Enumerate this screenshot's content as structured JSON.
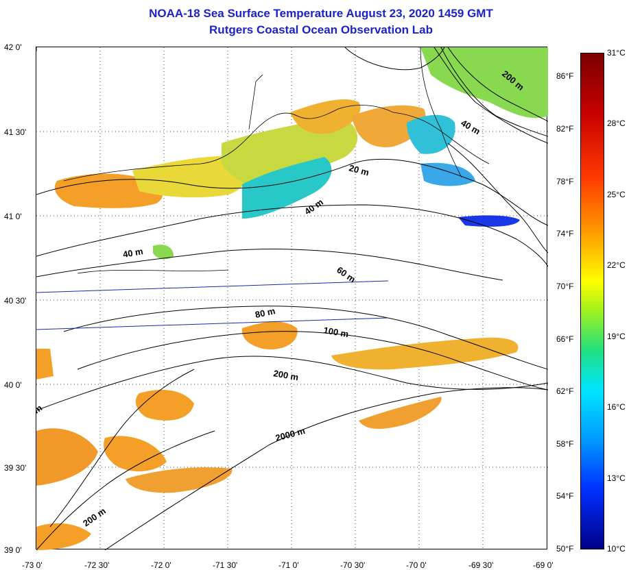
{
  "title": {
    "line1": "NOAA-18 Sea Surface Temperature August 23, 2020 1459 GMT",
    "line2": "Rutgers Coastal Ocean Observation Lab"
  },
  "lat_labels": [
    "42 0'",
    "41 30'",
    "41 0'",
    "40 30'",
    "40 0'",
    "39 30'",
    "39 0'"
  ],
  "lon_labels": [
    "-73 0'",
    "-72 30'",
    "-72 0'",
    "-71 30'",
    "-71 0'",
    "-70 30'",
    "-70 0'",
    "-69 30'",
    "-69 0'"
  ],
  "fahrenheit_labels": [
    "86°F",
    "82°F",
    "78°F",
    "74°F",
    "70°F",
    "66°F",
    "62°F",
    "58°F",
    "54°F",
    "50°F"
  ],
  "celsius_labels": [
    "31°C",
    "28°C",
    "25°C",
    "22°C",
    "19°C",
    "16°C",
    "13°C",
    "10°C"
  ],
  "depth_labels": [
    "200 m",
    "40 m",
    "20 m",
    "40 m",
    "40 m",
    "60 m",
    "80 m",
    "100 m",
    "200 m",
    "2000 m",
    "200 m",
    "m"
  ],
  "colors": {
    "title": "#1c22c9",
    "warm": "#f4a028",
    "mid": "#e8d838",
    "cool": "#28c8c8",
    "cold": "#1838e8",
    "green": "#88d850"
  }
}
